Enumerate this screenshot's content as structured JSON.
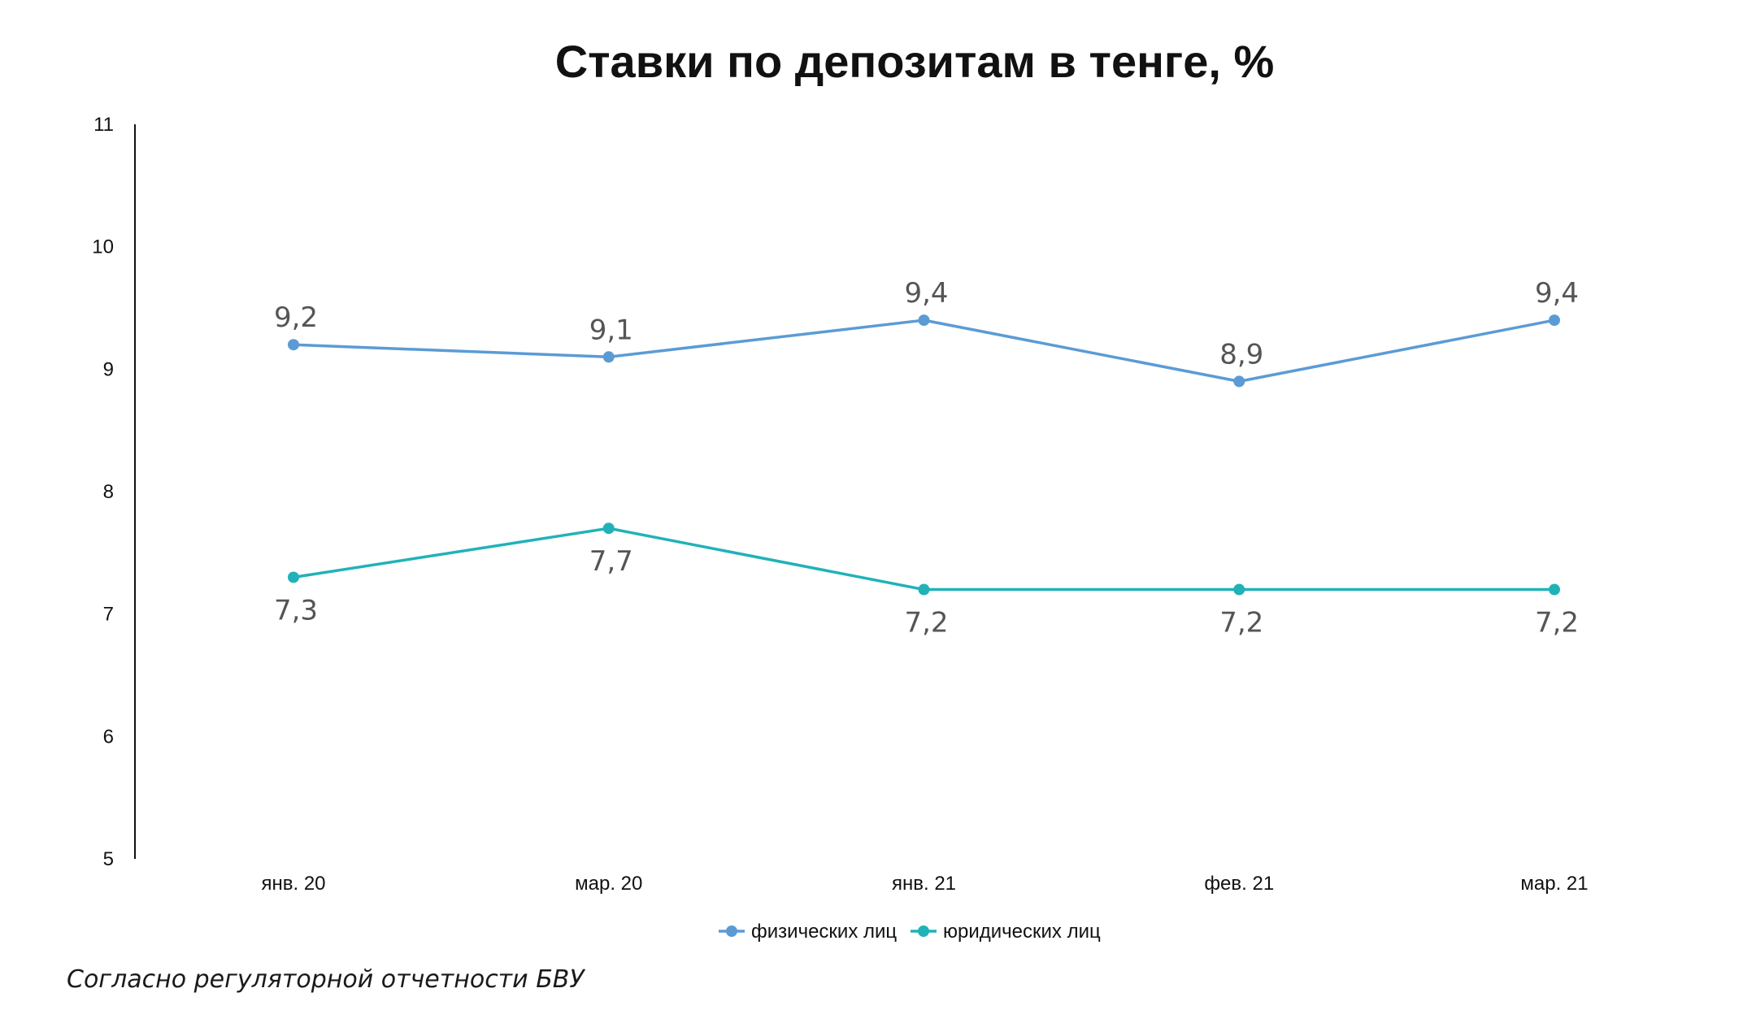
{
  "source_note": "Согласно регуляторной отчетности БВУ",
  "chart_data": {
    "type": "line",
    "title": "Ставки по депозитам в тенге, %",
    "xlabel": "",
    "ylabel": "",
    "categories": [
      "янв. 20",
      "мар. 20",
      "янв. 21",
      "фев. 21",
      "мар. 21"
    ],
    "ylim": [
      5,
      11
    ],
    "yticks": [
      5,
      6,
      7,
      8,
      9,
      10,
      11
    ],
    "grid": false,
    "legend_position": "bottom",
    "series": [
      {
        "name": "физических лиц",
        "color": "#5b9bd5",
        "values": [
          9.2,
          9.1,
          9.4,
          8.9,
          9.4
        ],
        "labels": [
          "9,2",
          "9,1",
          "9,4",
          "8,9",
          "9,4"
        ],
        "label_position": "above"
      },
      {
        "name": "юридических лиц",
        "color": "#20b2b8",
        "values": [
          7.3,
          7.7,
          7.2,
          7.2,
          7.2
        ],
        "labels": [
          "7,3",
          "7,7",
          "7,2",
          "7,2",
          "7,2"
        ],
        "label_position": "below"
      }
    ]
  }
}
